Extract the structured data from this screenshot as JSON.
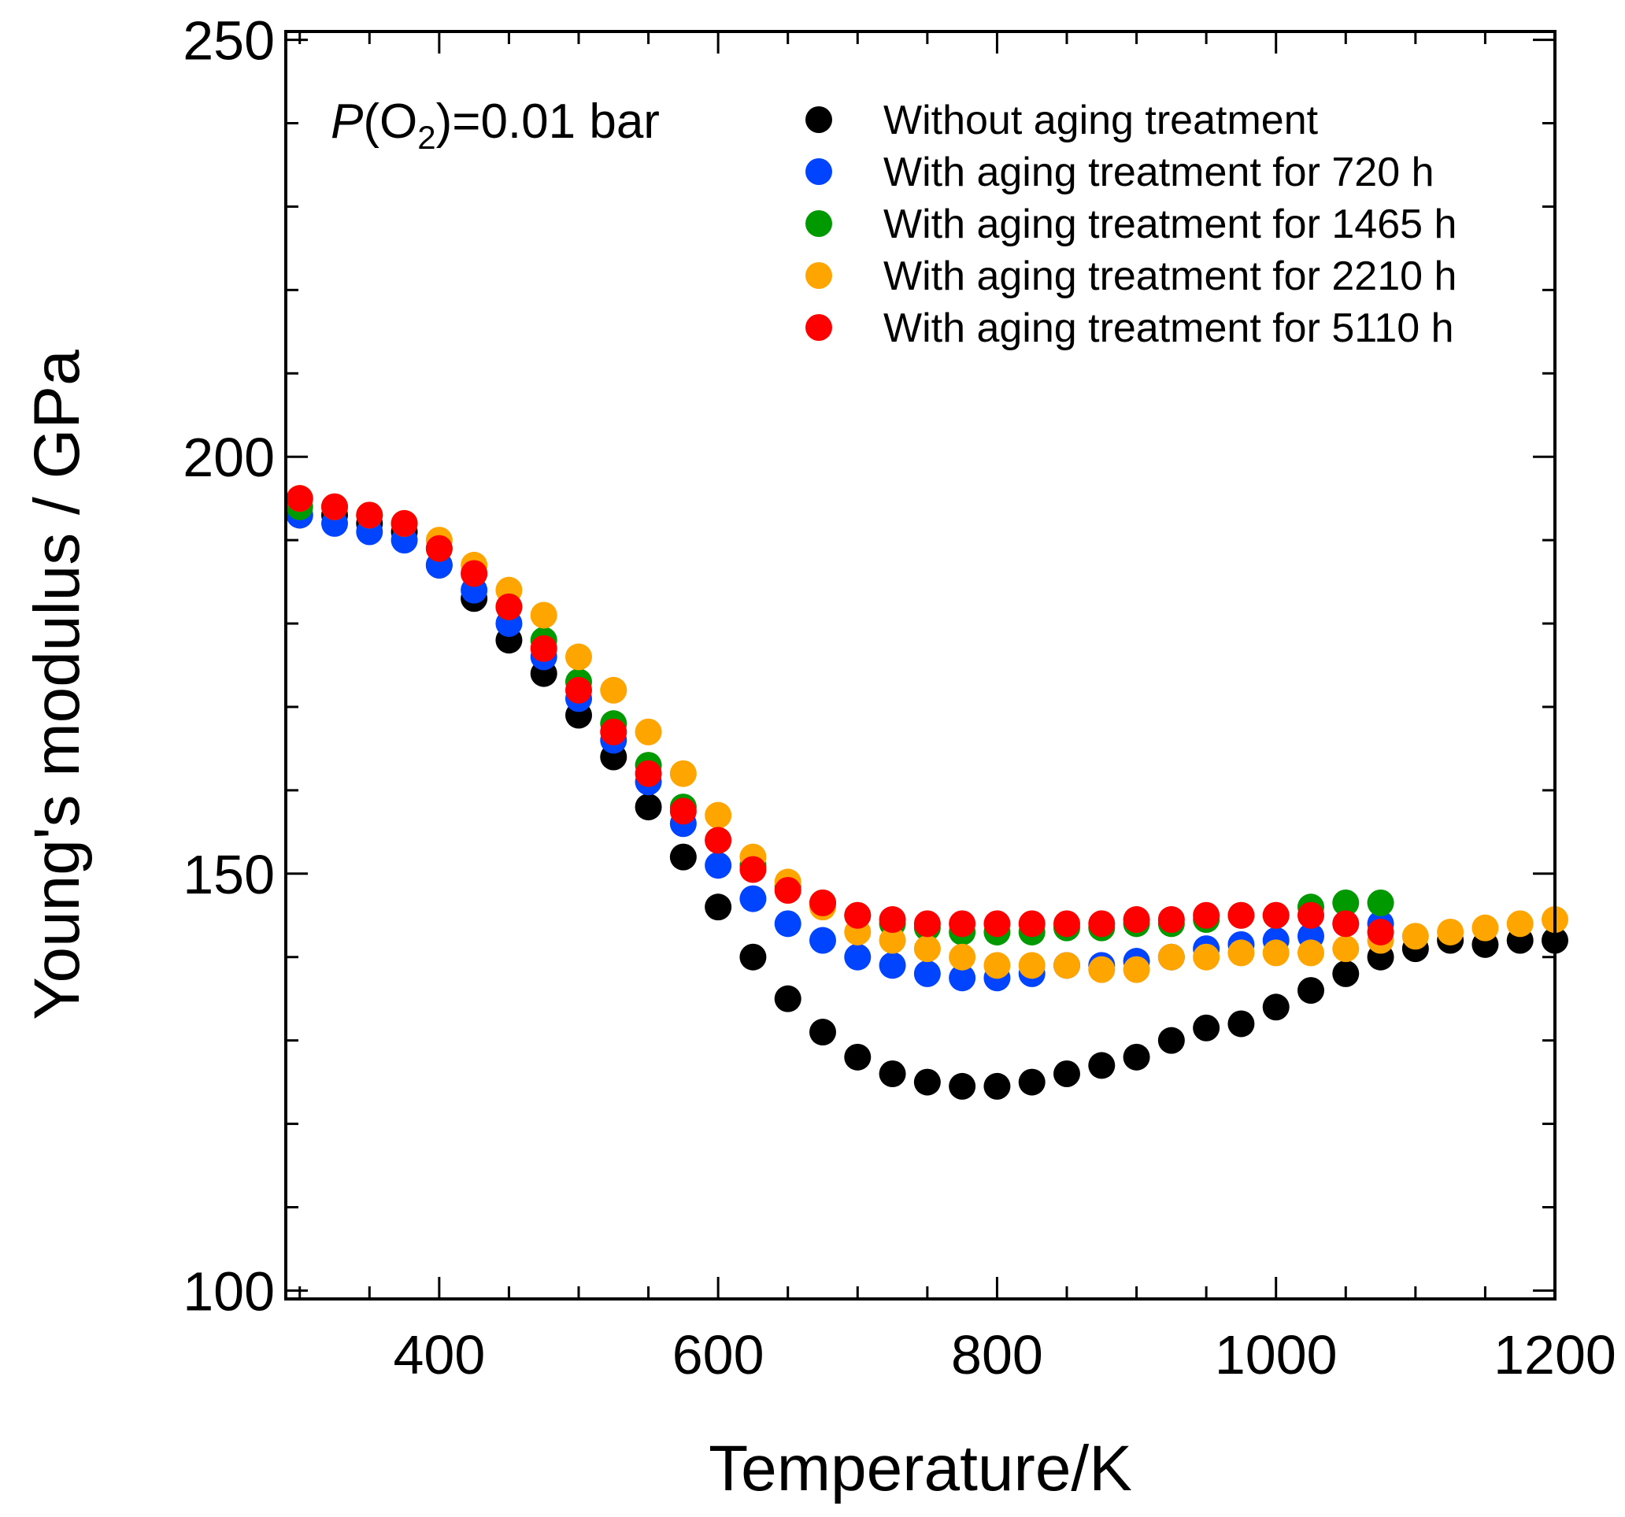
{
  "chart_data": {
    "type": "scatter",
    "title": "",
    "xlabel": "Temperature/K",
    "ylabel": "Young's modulus / GPa",
    "xlim": [
      290,
      1200
    ],
    "ylim": [
      99,
      251
    ],
    "x_major_ticks": [
      400,
      600,
      800,
      1000,
      1200
    ],
    "x_tick_labels": [
      "400",
      "600",
      "800",
      "1000",
      "1200"
    ],
    "y_major_ticks": [
      100,
      150,
      200,
      250
    ],
    "y_tick_labels": [
      "100",
      "150",
      "200",
      "250"
    ],
    "annotation": {
      "italic": "P",
      "open": "(O",
      "sub": "2",
      "close": ")=0.01 bar"
    },
    "legend_position": "top-right",
    "series": [
      {
        "name": "Without aging treatment",
        "color": "#000000",
        "x": [
          300,
          325,
          350,
          375,
          400,
          425,
          450,
          475,
          500,
          525,
          550,
          575,
          600,
          625,
          650,
          675,
          700,
          725,
          750,
          775,
          800,
          825,
          850,
          875,
          900,
          925,
          950,
          975,
          1000,
          1025,
          1050,
          1075,
          1100,
          1125,
          1150,
          1175,
          1200
        ],
        "y": [
          193,
          193,
          192,
          191,
          187,
          183,
          178,
          174,
          169,
          164,
          158,
          152,
          146,
          140,
          135,
          131,
          128,
          126,
          125,
          124.5,
          124.5,
          125,
          126,
          127,
          128,
          130,
          131.5,
          132,
          134,
          136,
          138,
          140,
          141,
          142,
          141.5,
          142,
          142
        ]
      },
      {
        "name": "With aging treatment for 720 h",
        "color": "#0044ff",
        "x": [
          300,
          325,
          350,
          375,
          400,
          425,
          450,
          475,
          500,
          525,
          550,
          575,
          600,
          625,
          650,
          675,
          700,
          725,
          750,
          775,
          800,
          825,
          850,
          875,
          900,
          925,
          950,
          975,
          1000,
          1025,
          1050,
          1075
        ],
        "y": [
          193,
          192,
          191,
          190,
          187,
          184,
          180,
          176,
          171,
          166,
          161,
          156,
          151,
          147,
          144,
          142,
          140,
          139,
          138,
          137.5,
          137.5,
          138,
          139,
          139,
          139.5,
          140,
          141,
          141.5,
          142,
          142.5,
          144,
          144
        ]
      },
      {
        "name": "With aging treatment for 1465 h",
        "color": "#009900",
        "x": [
          300,
          325,
          350,
          375,
          400,
          425,
          450,
          475,
          500,
          525,
          550,
          575,
          600,
          625,
          650,
          675,
          700,
          725,
          750,
          775,
          800,
          825,
          850,
          875,
          900,
          925,
          950,
          975,
          1000,
          1025,
          1050,
          1075
        ],
        "y": [
          194,
          194,
          193,
          192,
          189,
          186,
          182,
          178,
          173,
          168,
          163,
          158,
          154,
          151,
          148.5,
          146.5,
          145,
          144,
          143.5,
          143,
          143,
          143,
          143.5,
          143.5,
          144,
          144,
          144.5,
          145,
          145,
          146,
          146.5,
          146.5
        ]
      },
      {
        "name": "With aging treatment for 2210 h",
        "color": "#ffa500",
        "x": [
          300,
          325,
          350,
          375,
          400,
          425,
          450,
          475,
          500,
          525,
          550,
          575,
          600,
          625,
          650,
          675,
          700,
          725,
          750,
          775,
          800,
          825,
          850,
          875,
          900,
          925,
          950,
          975,
          1000,
          1025,
          1050,
          1075,
          1100,
          1125,
          1150,
          1175,
          1200
        ],
        "y": [
          195,
          194,
          193,
          192,
          190,
          187,
          184,
          181,
          176,
          172,
          167,
          162,
          157,
          152,
          149,
          146,
          143,
          142,
          141,
          140,
          139,
          139,
          139,
          138.5,
          138.5,
          140,
          140,
          140.5,
          140.5,
          140.5,
          141,
          142,
          142.5,
          143,
          143.5,
          144,
          144.5
        ]
      },
      {
        "name": "With aging treatment for 5110 h",
        "color": "#ff0000",
        "x": [
          300,
          325,
          350,
          375,
          400,
          425,
          450,
          475,
          500,
          525,
          550,
          575,
          600,
          625,
          650,
          675,
          700,
          725,
          750,
          775,
          800,
          825,
          850,
          875,
          900,
          925,
          950,
          975,
          1000,
          1025,
          1050,
          1075
        ],
        "y": [
          195,
          194,
          193,
          192,
          189,
          186,
          182,
          177,
          172,
          167,
          162,
          157.5,
          154,
          150.5,
          148,
          146.5,
          145,
          144.5,
          144,
          144,
          144,
          144,
          144,
          144,
          144.5,
          144.5,
          145,
          145,
          145,
          145,
          144,
          143
        ]
      }
    ]
  }
}
